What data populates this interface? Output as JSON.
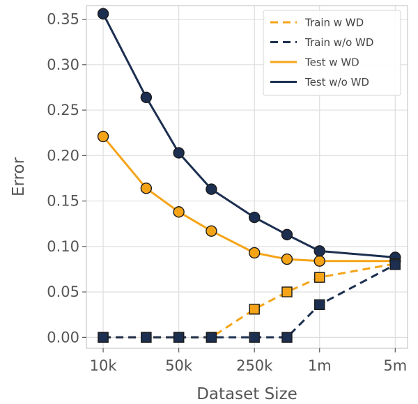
{
  "chart_data": {
    "type": "line",
    "title": "",
    "xlabel": "Dataset Size",
    "ylabel": "Error",
    "x_scale": "log",
    "xlim": [
      7000,
      6500000
    ],
    "ylim": [
      -0.012,
      0.365
    ],
    "grid": true,
    "legend_position": "top-right",
    "x_ticks": [
      {
        "value": 10000,
        "label": "10k"
      },
      {
        "value": 50000,
        "label": "50k"
      },
      {
        "value": 250000,
        "label": "250k"
      },
      {
        "value": 1000000,
        "label": "1m"
      },
      {
        "value": 5000000,
        "label": "5m"
      }
    ],
    "y_ticks": [
      {
        "value": 0.0,
        "label": "0.00"
      },
      {
        "value": 0.05,
        "label": "0.05"
      },
      {
        "value": 0.1,
        "label": "0.10"
      },
      {
        "value": 0.15,
        "label": "0.15"
      },
      {
        "value": 0.2,
        "label": "0.20"
      },
      {
        "value": 0.25,
        "label": "0.25"
      },
      {
        "value": 0.3,
        "label": "0.30"
      },
      {
        "value": 0.35,
        "label": "0.35"
      }
    ],
    "series": [
      {
        "name": "Train w WD",
        "color": "#f5a418",
        "dash": true,
        "marker": "square",
        "points": [
          {
            "x": 10000,
            "y": 0.0
          },
          {
            "x": 25000,
            "y": 0.0
          },
          {
            "x": 50000,
            "y": 0.0
          },
          {
            "x": 100000,
            "y": 0.0
          },
          {
            "x": 250000,
            "y": 0.031
          },
          {
            "x": 500000,
            "y": 0.05
          },
          {
            "x": 1000000,
            "y": 0.066
          },
          {
            "x": 5000000,
            "y": 0.081
          }
        ]
      },
      {
        "name": "Train w/o WD",
        "color": "#1c2f50",
        "dash": true,
        "marker": "square",
        "points": [
          {
            "x": 10000,
            "y": 0.0
          },
          {
            "x": 25000,
            "y": 0.0
          },
          {
            "x": 50000,
            "y": 0.0
          },
          {
            "x": 100000,
            "y": 0.0
          },
          {
            "x": 250000,
            "y": 0.0
          },
          {
            "x": 500000,
            "y": 0.0
          },
          {
            "x": 1000000,
            "y": 0.036
          },
          {
            "x": 5000000,
            "y": 0.08
          }
        ]
      },
      {
        "name": "Test w WD",
        "color": "#f5a418",
        "dash": false,
        "marker": "circle",
        "points": [
          {
            "x": 10000,
            "y": 0.221
          },
          {
            "x": 25000,
            "y": 0.164
          },
          {
            "x": 50000,
            "y": 0.138
          },
          {
            "x": 100000,
            "y": 0.117
          },
          {
            "x": 250000,
            "y": 0.093
          },
          {
            "x": 500000,
            "y": 0.086
          },
          {
            "x": 1000000,
            "y": 0.084
          },
          {
            "x": 5000000,
            "y": 0.084
          }
        ]
      },
      {
        "name": "Test w/o WD",
        "color": "#1c2f50",
        "dash": false,
        "marker": "circle",
        "points": [
          {
            "x": 10000,
            "y": 0.356
          },
          {
            "x": 25000,
            "y": 0.264
          },
          {
            "x": 50000,
            "y": 0.203
          },
          {
            "x": 100000,
            "y": 0.163
          },
          {
            "x": 250000,
            "y": 0.132
          },
          {
            "x": 500000,
            "y": 0.113
          },
          {
            "x": 1000000,
            "y": 0.095
          },
          {
            "x": 5000000,
            "y": 0.088
          }
        ]
      }
    ]
  }
}
